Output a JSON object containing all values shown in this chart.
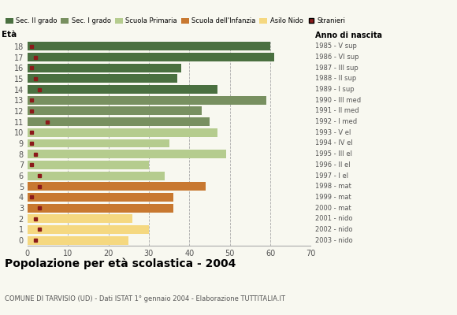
{
  "ages": [
    18,
    17,
    16,
    15,
    14,
    13,
    12,
    11,
    10,
    9,
    8,
    7,
    6,
    5,
    4,
    3,
    2,
    1,
    0
  ],
  "values": [
    60,
    61,
    38,
    37,
    47,
    59,
    43,
    45,
    47,
    35,
    49,
    30,
    34,
    44,
    36,
    36,
    26,
    30,
    25
  ],
  "stranieri": [
    1,
    2,
    1,
    2,
    3,
    1,
    1,
    5,
    1,
    1,
    2,
    1,
    3,
    3,
    1,
    3,
    2,
    3,
    2
  ],
  "anno_nascita": [
    "1985 - V sup",
    "1986 - VI sup",
    "1987 - III sup",
    "1988 - II sup",
    "1989 - I sup",
    "1990 - III med",
    "1991 - II med",
    "1992 - I med",
    "1993 - V el",
    "1994 - IV el",
    "1995 - III el",
    "1996 - II el",
    "1997 - I el",
    "1998 - mat",
    "1999 - mat",
    "2000 - mat",
    "2001 - nido",
    "2002 - nido",
    "2003 - nido"
  ],
  "color_per_age": [
    "#4a7040",
    "#4a7040",
    "#4a7040",
    "#4a7040",
    "#4a7040",
    "#789060",
    "#789060",
    "#789060",
    "#b5cc8e",
    "#b5cc8e",
    "#b5cc8e",
    "#b5cc8e",
    "#b5cc8e",
    "#c87830",
    "#c87830",
    "#c87830",
    "#f5d880",
    "#f5d880",
    "#f5d880"
  ],
  "stranieri_color": "#8b1a1a",
  "legend_labels": [
    "Sec. II grado",
    "Sec. I grado",
    "Scuola Primaria",
    "Scuola dell'Infanzia",
    "Asilo Nido",
    "Stranieri"
  ],
  "legend_colors": [
    "#4a7040",
    "#789060",
    "#b5cc8e",
    "#c87830",
    "#f5d880",
    "#8b1a1a"
  ],
  "title": "Popolazione per età scolastica - 2004",
  "subtitle": "COMUNE DI TARVISIO (UD) - Dati ISTAT 1° gennaio 2004 - Elaborazione TUTTITALIA.IT",
  "eta_label": "Età",
  "anno_label": "Anno di nascita",
  "xlim": [
    0,
    70
  ],
  "xticks": [
    0,
    10,
    20,
    30,
    40,
    50,
    60,
    70
  ],
  "background_color": "#f8f8f0",
  "grid_color": "#aaaaaa"
}
